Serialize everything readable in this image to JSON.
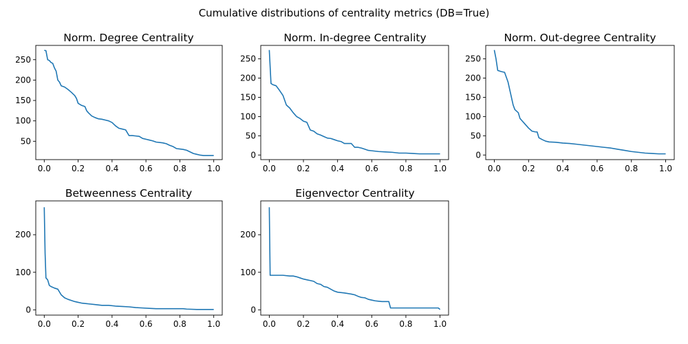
{
  "suptitle": "Cumulative distributions of centrality metrics (DB=True)",
  "line_color": "#1f77b4",
  "chart_data": [
    {
      "type": "line",
      "title": "Norm. Degree Centrality",
      "xlabel": "",
      "ylabel": "",
      "xlim": [
        -0.05,
        1.05
      ],
      "ylim": [
        5,
        285
      ],
      "xticks": [
        "0.0",
        "0.2",
        "0.4",
        "0.6",
        "0.8",
        "1.0"
      ],
      "yticks": [
        "50",
        "100",
        "150",
        "200",
        "250"
      ],
      "x": [
        0.0,
        0.01,
        0.02,
        0.03,
        0.04,
        0.05,
        0.06,
        0.07,
        0.08,
        0.09,
        0.1,
        0.12,
        0.14,
        0.16,
        0.18,
        0.19,
        0.2,
        0.22,
        0.24,
        0.25,
        0.26,
        0.28,
        0.3,
        0.32,
        0.34,
        0.36,
        0.38,
        0.4,
        0.42,
        0.44,
        0.46,
        0.48,
        0.5,
        0.52,
        0.54,
        0.56,
        0.58,
        0.6,
        0.62,
        0.64,
        0.66,
        0.68,
        0.7,
        0.72,
        0.74,
        0.76,
        0.78,
        0.8,
        0.82,
        0.84,
        0.86,
        0.88,
        0.9,
        0.92,
        0.94,
        0.96,
        0.98,
        1.0
      ],
      "y": [
        273,
        272,
        250,
        248,
        243,
        241,
        230,
        222,
        200,
        195,
        186,
        183,
        177,
        170,
        162,
        155,
        143,
        138,
        135,
        125,
        120,
        112,
        108,
        105,
        104,
        102,
        100,
        96,
        88,
        82,
        80,
        78,
        64,
        64,
        63,
        62,
        57,
        55,
        53,
        51,
        48,
        47,
        46,
        44,
        40,
        37,
        32,
        31,
        30,
        28,
        24,
        20,
        18,
        16,
        15,
        15,
        15,
        15
      ]
    },
    {
      "type": "line",
      "title": "Norm. In-degree Centrality",
      "xlabel": "",
      "ylabel": "",
      "xlim": [
        -0.05,
        1.05
      ],
      "ylim": [
        -12,
        285
      ],
      "xticks": [
        "0.0",
        "0.2",
        "0.4",
        "0.6",
        "0.8",
        "1.0"
      ],
      "yticks": [
        "0",
        "50",
        "100",
        "150",
        "200",
        "250"
      ],
      "x": [
        0.0,
        0.01,
        0.02,
        0.04,
        0.06,
        0.08,
        0.1,
        0.12,
        0.14,
        0.16,
        0.18,
        0.2,
        0.22,
        0.24,
        0.26,
        0.28,
        0.3,
        0.32,
        0.34,
        0.36,
        0.38,
        0.4,
        0.42,
        0.44,
        0.46,
        0.48,
        0.5,
        0.52,
        0.54,
        0.56,
        0.58,
        0.6,
        0.64,
        0.68,
        0.72,
        0.76,
        0.8,
        0.84,
        0.88,
        0.92,
        0.96,
        1.0
      ],
      "y": [
        273,
        186,
        183,
        180,
        168,
        155,
        130,
        122,
        110,
        100,
        95,
        88,
        85,
        65,
        62,
        55,
        52,
        48,
        44,
        43,
        40,
        37,
        35,
        30,
        30,
        30,
        20,
        20,
        18,
        15,
        12,
        11,
        9,
        8,
        7,
        5,
        5,
        4,
        3,
        3,
        3,
        3
      ]
    },
    {
      "type": "line",
      "title": "Norm. Out-degree Centrality",
      "xlabel": "",
      "ylabel": "",
      "xlim": [
        -0.05,
        1.05
      ],
      "ylim": [
        -12,
        285
      ],
      "xticks": [
        "0.0",
        "0.2",
        "0.4",
        "0.6",
        "0.8",
        "1.0"
      ],
      "yticks": [
        "0",
        "50",
        "100",
        "150",
        "200",
        "250"
      ],
      "x": [
        0.0,
        0.01,
        0.02,
        0.04,
        0.06,
        0.08,
        0.1,
        0.11,
        0.12,
        0.14,
        0.15,
        0.16,
        0.18,
        0.2,
        0.22,
        0.24,
        0.25,
        0.26,
        0.28,
        0.3,
        0.32,
        0.36,
        0.4,
        0.44,
        0.48,
        0.52,
        0.56,
        0.6,
        0.64,
        0.68,
        0.72,
        0.76,
        0.8,
        0.84,
        0.88,
        0.92,
        0.96,
        1.0
      ],
      "y": [
        273,
        250,
        220,
        217,
        215,
        190,
        150,
        130,
        118,
        110,
        95,
        90,
        80,
        70,
        62,
        60,
        60,
        45,
        40,
        36,
        34,
        33,
        31,
        30,
        28,
        26,
        24,
        22,
        20,
        18,
        15,
        12,
        9,
        7,
        5,
        4,
        3,
        3
      ]
    },
    {
      "type": "line",
      "title": "Betweenness Centrality",
      "xlabel": "",
      "ylabel": "",
      "xlim": [
        -0.05,
        1.05
      ],
      "ylim": [
        -14,
        290
      ],
      "xticks": [
        "0.0",
        "0.2",
        "0.4",
        "0.6",
        "0.8",
        "1.0"
      ],
      "yticks": [
        "0",
        "100",
        "200"
      ],
      "x": [
        0.0,
        0.005,
        0.01,
        0.02,
        0.03,
        0.04,
        0.06,
        0.08,
        0.1,
        0.12,
        0.14,
        0.16,
        0.18,
        0.2,
        0.22,
        0.26,
        0.3,
        0.34,
        0.38,
        0.42,
        0.46,
        0.5,
        0.54,
        0.58,
        0.62,
        0.66,
        0.7,
        0.76,
        0.82,
        0.84,
        0.9,
        0.96,
        1.0
      ],
      "y": [
        273,
        150,
        85,
        80,
        65,
        62,
        58,
        55,
        40,
        32,
        28,
        25,
        22,
        20,
        18,
        16,
        14,
        12,
        12,
        10,
        9,
        8,
        6,
        5,
        4,
        3,
        3,
        3,
        3,
        2,
        1,
        1,
        1
      ]
    },
    {
      "type": "line",
      "title": "Eigenvector Centrality",
      "xlabel": "",
      "ylabel": "",
      "xlim": [
        -0.05,
        1.05
      ],
      "ylim": [
        -14,
        290
      ],
      "xticks": [
        "0.0",
        "0.2",
        "0.4",
        "0.6",
        "0.8",
        "1.0"
      ],
      "yticks": [
        "0",
        "100",
        "200"
      ],
      "x": [
        0.0,
        0.005,
        0.02,
        0.04,
        0.08,
        0.12,
        0.14,
        0.16,
        0.18,
        0.2,
        0.22,
        0.24,
        0.26,
        0.28,
        0.3,
        0.32,
        0.34,
        0.36,
        0.38,
        0.4,
        0.44,
        0.48,
        0.5,
        0.52,
        0.54,
        0.56,
        0.58,
        0.6,
        0.62,
        0.64,
        0.66,
        0.7,
        0.71,
        0.72,
        0.76,
        0.8,
        0.84,
        0.88,
        0.92,
        0.96,
        0.98,
        0.99,
        1.0
      ],
      "y": [
        273,
        92,
        92,
        92,
        92,
        90,
        90,
        88,
        85,
        82,
        80,
        78,
        76,
        70,
        68,
        62,
        60,
        55,
        50,
        47,
        45,
        42,
        40,
        36,
        33,
        32,
        28,
        26,
        24,
        23,
        22,
        22,
        5,
        5,
        5,
        5,
        5,
        5,
        5,
        5,
        5,
        5,
        1
      ]
    }
  ]
}
